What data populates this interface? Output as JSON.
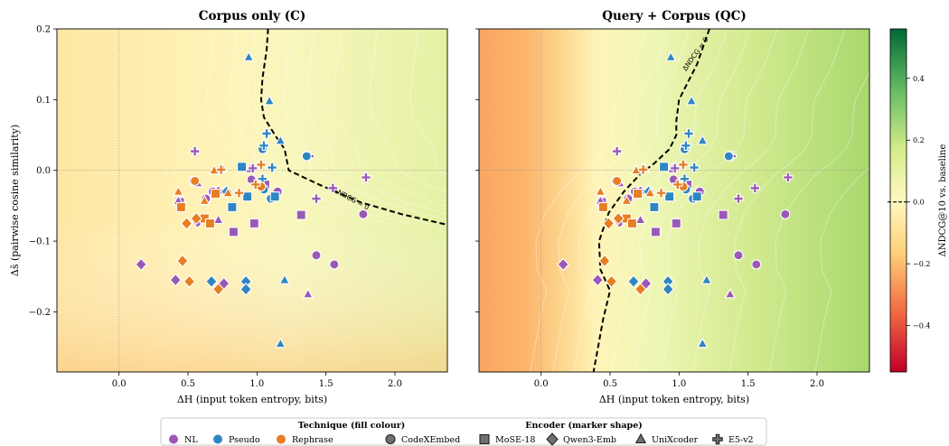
{
  "panels": [
    {
      "title": "Corpus only  (C)",
      "mode": "corpus"
    },
    {
      "title": "Query + Corpus  (QC)",
      "mode": "qc"
    }
  ],
  "x_axis": {
    "label": "ΔH  (input token entropy, bits)",
    "range": [
      -0.45,
      2.38
    ],
    "ticks": [
      "0.0",
      "0.5",
      "1.0",
      "1.5",
      "2.0"
    ],
    "tick_values": [
      0.0,
      0.5,
      1.0,
      1.5,
      2.0
    ]
  },
  "y_axis": {
    "label": "Δs̄  (pairwise cosine similarity)",
    "range": [
      -0.285,
      0.2
    ],
    "ticks": [
      "0.2",
      "0.1",
      "0.0",
      "−0.1",
      "−0.2"
    ],
    "tick_values": [
      0.2,
      0.1,
      0.0,
      -0.1,
      -0.2
    ]
  },
  "colorbar": {
    "label": "ΔNDCG@10  vs. baseline",
    "range": [
      -0.55,
      0.56
    ],
    "ticks": [
      "0.4",
      "0.2",
      "0.0",
      "−0.2",
      "−0.4"
    ],
    "tick_values": [
      0.4,
      0.2,
      0.0,
      -0.2,
      -0.4
    ]
  },
  "contour_label": "ΔNDCG = 0",
  "legend": {
    "technique_title": "Technique (fill colour)",
    "encoder_title": "Encoder (marker shape)",
    "techniques": [
      {
        "name": "NL",
        "color": "#9b59b6"
      },
      {
        "name": "Pseudo",
        "color": "#2e86c1"
      },
      {
        "name": "Rephrase",
        "color": "#e67e22"
      }
    ],
    "encoders": [
      {
        "name": "CodeXEmbed",
        "shape": "circle"
      },
      {
        "name": "MoSE-18",
        "shape": "square"
      },
      {
        "name": "Qwen3-Emb",
        "shape": "diamond"
      },
      {
        "name": "UniXcoder",
        "shape": "triangle"
      },
      {
        "name": "E5-v2",
        "shape": "plus"
      }
    ]
  },
  "chart_data": [
    {
      "type": "scatter",
      "title": "Corpus only  (C)",
      "xlabel": "ΔH  (input token entropy, bits)",
      "ylabel": "Δs̄  (pairwise cosine similarity)",
      "xlim": [
        -0.45,
        2.38
      ],
      "ylim": [
        -0.285,
        0.2
      ],
      "contour_zero": [
        [
          1.08,
          0.2
        ],
        [
          1.07,
          0.17
        ],
        [
          1.04,
          0.13
        ],
        [
          1.03,
          0.1
        ],
        [
          1.05,
          0.075
        ],
        [
          1.13,
          0.05
        ],
        [
          1.2,
          0.03
        ],
        [
          1.23,
          0.0
        ],
        [
          1.45,
          -0.02
        ],
        [
          1.75,
          -0.045
        ],
        [
          2.05,
          -0.062
        ],
        [
          2.38,
          -0.077
        ]
      ],
      "series": [
        {
          "technique": "NL",
          "encoder": "CodeXEmbed",
          "points": [
            [
              0.54,
              -0.015
            ],
            [
              0.63,
              -0.04
            ],
            [
              0.96,
              -0.013
            ],
            [
              1.15,
              -0.03
            ],
            [
              1.43,
              -0.12
            ],
            [
              1.56,
              -0.133
            ],
            [
              1.77,
              -0.062
            ],
            [
              0.68,
              -0.03
            ]
          ]
        },
        {
          "technique": "NL",
          "encoder": "MoSE-18",
          "points": [
            [
              0.44,
              -0.045
            ],
            [
              0.83,
              -0.087
            ],
            [
              0.98,
              -0.075
            ],
            [
              1.32,
              -0.063
            ],
            [
              1.06,
              -0.02
            ]
          ]
        },
        {
          "technique": "NL",
          "encoder": "Qwen3-Emb",
          "points": [
            [
              0.16,
              -0.133
            ],
            [
              0.41,
              -0.155
            ],
            [
              0.57,
              -0.073
            ],
            [
              0.76,
              -0.16
            ],
            [
              0.72,
              -0.03
            ]
          ]
        },
        {
          "technique": "NL",
          "encoder": "UniXcoder",
          "points": [
            [
              0.57,
              -0.018
            ],
            [
              0.43,
              -0.043
            ],
            [
              0.72,
              -0.07
            ],
            [
              1.37,
              -0.175
            ],
            [
              0.95,
              0.002
            ]
          ]
        },
        {
          "technique": "NL",
          "encoder": "E5-v2",
          "points": [
            [
              0.55,
              0.027
            ],
            [
              1.38,
              0.02
            ],
            [
              1.43,
              -0.04
            ],
            [
              1.55,
              -0.025
            ],
            [
              1.79,
              -0.01
            ],
            [
              0.97,
              0.003
            ]
          ]
        },
        {
          "technique": "Pseudo",
          "encoder": "CodeXEmbed",
          "points": [
            [
              1.04,
              0.03
            ],
            [
              1.36,
              0.02
            ],
            [
              1.05,
              -0.027
            ],
            [
              1.1,
              -0.04
            ]
          ]
        },
        {
          "technique": "Pseudo",
          "encoder": "MoSE-18",
          "points": [
            [
              0.89,
              0.005
            ],
            [
              0.93,
              -0.037
            ],
            [
              0.82,
              -0.052
            ],
            [
              1.13,
              -0.037
            ]
          ]
        },
        {
          "technique": "Pseudo",
          "encoder": "Qwen3-Emb",
          "points": [
            [
              0.92,
              -0.157
            ],
            [
              0.67,
              -0.157
            ],
            [
              0.92,
              -0.168
            ],
            [
              0.78,
              -0.03
            ]
          ]
        },
        {
          "technique": "Pseudo",
          "encoder": "UniXcoder",
          "points": [
            [
              0.94,
              0.16
            ],
            [
              1.09,
              0.098
            ],
            [
              1.17,
              0.042
            ],
            [
              1.17,
              -0.245
            ],
            [
              1.2,
              -0.155
            ]
          ]
        },
        {
          "technique": "Pseudo",
          "encoder": "E5-v2",
          "points": [
            [
              1.07,
              0.052
            ],
            [
              1.05,
              0.035
            ],
            [
              1.04,
              -0.012
            ],
            [
              1.11,
              0.004
            ]
          ]
        },
        {
          "technique": "Rephrase",
          "encoder": "CodeXEmbed",
          "points": [
            [
              0.55,
              -0.015
            ],
            [
              1.03,
              -0.023
            ]
          ]
        },
        {
          "technique": "Rephrase",
          "encoder": "MoSE-18",
          "points": [
            [
              0.45,
              -0.052
            ],
            [
              0.7,
              -0.033
            ],
            [
              0.62,
              -0.068
            ],
            [
              0.66,
              -0.075
            ]
          ]
        },
        {
          "technique": "Rephrase",
          "encoder": "Qwen3-Emb",
          "points": [
            [
              0.49,
              -0.075
            ],
            [
              0.46,
              -0.128
            ],
            [
              0.51,
              -0.157
            ],
            [
              0.72,
              -0.168
            ],
            [
              0.56,
              -0.068
            ]
          ]
        },
        {
          "technique": "Rephrase",
          "encoder": "UniXcoder",
          "points": [
            [
              0.69,
              0.0
            ],
            [
              0.43,
              -0.03
            ],
            [
              0.62,
              -0.043
            ],
            [
              0.79,
              -0.032
            ],
            [
              0.75,
              0.003
            ]
          ]
        },
        {
          "technique": "Rephrase",
          "encoder": "E5-v2",
          "points": [
            [
              0.74,
              0.001
            ],
            [
              0.87,
              -0.032
            ],
            [
              1.03,
              0.008
            ],
            [
              0.99,
              -0.02
            ]
          ]
        }
      ]
    },
    {
      "type": "scatter",
      "title": "Query + Corpus  (QC)",
      "xlabel": "ΔH  (input token entropy, bits)",
      "ylabel": "Δs̄  (pairwise cosine similarity)",
      "xlim": [
        -0.45,
        2.38
      ],
      "ylim": [
        -0.285,
        0.2
      ],
      "contour_zero": [
        [
          1.22,
          0.2
        ],
        [
          1.13,
          0.15
        ],
        [
          1.0,
          0.1
        ],
        [
          0.98,
          0.07
        ],
        [
          0.98,
          0.05
        ],
        [
          0.93,
          0.03
        ],
        [
          0.82,
          0.01
        ],
        [
          0.72,
          -0.005
        ],
        [
          0.6,
          -0.03
        ],
        [
          0.49,
          -0.06
        ],
        [
          0.42,
          -0.1
        ],
        [
          0.43,
          -0.14
        ],
        [
          0.5,
          -0.17
        ],
        [
          0.45,
          -0.21
        ],
        [
          0.38,
          -0.285
        ]
      ],
      "series": [
        {
          "technique": "NL",
          "encoder": "CodeXEmbed",
          "points": [
            [
              0.54,
              -0.015
            ],
            [
              0.63,
              -0.04
            ],
            [
              0.96,
              -0.013
            ],
            [
              1.15,
              -0.03
            ],
            [
              1.43,
              -0.12
            ],
            [
              1.56,
              -0.133
            ],
            [
              1.77,
              -0.062
            ],
            [
              0.68,
              -0.03
            ]
          ]
        },
        {
          "technique": "NL",
          "encoder": "MoSE-18",
          "points": [
            [
              0.44,
              -0.045
            ],
            [
              0.83,
              -0.087
            ],
            [
              0.98,
              -0.075
            ],
            [
              1.32,
              -0.063
            ],
            [
              1.06,
              -0.02
            ]
          ]
        },
        {
          "technique": "NL",
          "encoder": "Qwen3-Emb",
          "points": [
            [
              0.16,
              -0.133
            ],
            [
              0.41,
              -0.155
            ],
            [
              0.57,
              -0.073
            ],
            [
              0.76,
              -0.16
            ],
            [
              0.72,
              -0.03
            ]
          ]
        },
        {
          "technique": "NL",
          "encoder": "UniXcoder",
          "points": [
            [
              0.57,
              -0.018
            ],
            [
              0.43,
              -0.043
            ],
            [
              0.72,
              -0.07
            ],
            [
              1.37,
              -0.175
            ],
            [
              0.95,
              0.002
            ]
          ]
        },
        {
          "technique": "NL",
          "encoder": "E5-v2",
          "points": [
            [
              0.55,
              0.027
            ],
            [
              1.38,
              0.02
            ],
            [
              1.43,
              -0.04
            ],
            [
              1.55,
              -0.025
            ],
            [
              1.79,
              -0.01
            ],
            [
              0.97,
              0.003
            ]
          ]
        },
        {
          "technique": "Pseudo",
          "encoder": "CodeXEmbed",
          "points": [
            [
              1.04,
              0.03
            ],
            [
              1.36,
              0.02
            ],
            [
              1.05,
              -0.027
            ],
            [
              1.1,
              -0.04
            ]
          ]
        },
        {
          "technique": "Pseudo",
          "encoder": "MoSE-18",
          "points": [
            [
              0.89,
              0.005
            ],
            [
              0.93,
              -0.037
            ],
            [
              0.82,
              -0.052
            ],
            [
              1.13,
              -0.037
            ]
          ]
        },
        {
          "technique": "Pseudo",
          "encoder": "Qwen3-Emb",
          "points": [
            [
              0.92,
              -0.157
            ],
            [
              0.67,
              -0.157
            ],
            [
              0.92,
              -0.168
            ],
            [
              0.78,
              -0.03
            ]
          ]
        },
        {
          "technique": "Pseudo",
          "encoder": "UniXcoder",
          "points": [
            [
              0.94,
              0.16
            ],
            [
              1.09,
              0.098
            ],
            [
              1.17,
              0.042
            ],
            [
              1.17,
              -0.245
            ],
            [
              1.2,
              -0.155
            ]
          ]
        },
        {
          "technique": "Pseudo",
          "encoder": "E5-v2",
          "points": [
            [
              1.07,
              0.052
            ],
            [
              1.05,
              0.035
            ],
            [
              1.04,
              -0.012
            ],
            [
              1.11,
              0.004
            ]
          ]
        },
        {
          "technique": "Rephrase",
          "encoder": "CodeXEmbed",
          "points": [
            [
              0.55,
              -0.015
            ],
            [
              1.03,
              -0.023
            ]
          ]
        },
        {
          "technique": "Rephrase",
          "encoder": "MoSE-18",
          "points": [
            [
              0.45,
              -0.052
            ],
            [
              0.7,
              -0.033
            ],
            [
              0.62,
              -0.068
            ],
            [
              0.66,
              -0.075
            ]
          ]
        },
        {
          "technique": "Rephrase",
          "encoder": "Qwen3-Emb",
          "points": [
            [
              0.49,
              -0.075
            ],
            [
              0.46,
              -0.128
            ],
            [
              0.51,
              -0.157
            ],
            [
              0.72,
              -0.168
            ],
            [
              0.56,
              -0.068
            ]
          ]
        },
        {
          "technique": "Rephrase",
          "encoder": "UniXcoder",
          "points": [
            [
              0.69,
              0.0
            ],
            [
              0.43,
              -0.03
            ],
            [
              0.62,
              -0.043
            ],
            [
              0.79,
              -0.032
            ],
            [
              0.75,
              0.003
            ]
          ]
        },
        {
          "technique": "Rephrase",
          "encoder": "E5-v2",
          "points": [
            [
              0.74,
              0.001
            ],
            [
              0.87,
              -0.032
            ],
            [
              1.03,
              0.008
            ],
            [
              0.99,
              -0.02
            ]
          ]
        }
      ]
    }
  ]
}
